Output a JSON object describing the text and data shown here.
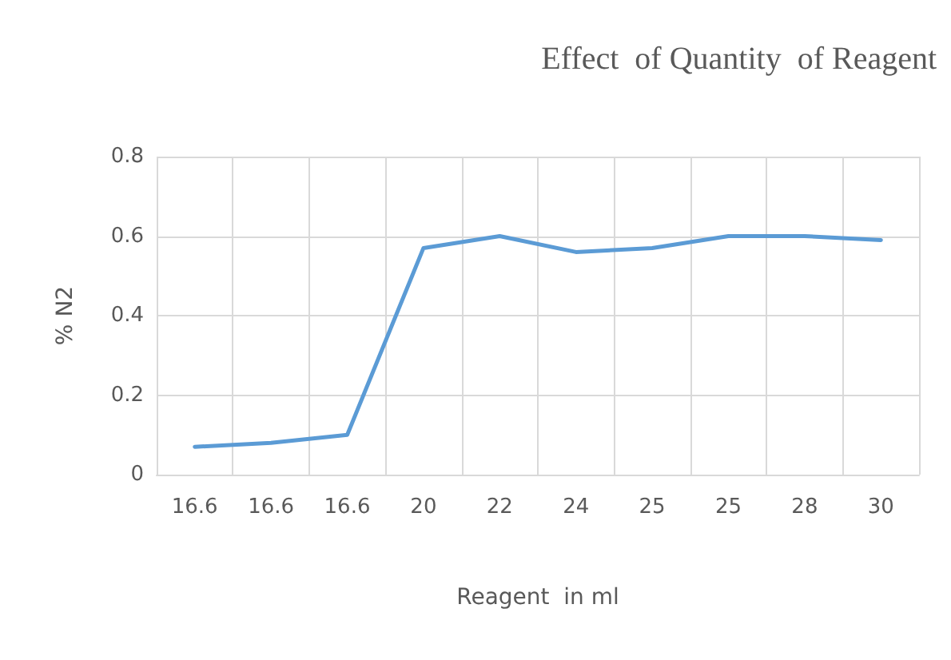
{
  "chart_data": {
    "type": "line",
    "title": "Effect  of Quantity  of Reagent",
    "xlabel": "Reagent  in ml",
    "ylabel": "% N2",
    "categories": [
      "16.6",
      "16.6",
      "16.6",
      "20",
      "22",
      "24",
      "25",
      "25",
      "28",
      "30"
    ],
    "series": [
      {
        "color": "#5b9bd5",
        "values": [
          0.07,
          0.08,
          0.1,
          0.57,
          0.6,
          0.56,
          0.57,
          0.6,
          0.6,
          0.59
        ]
      }
    ],
    "ylim": [
      0,
      0.8
    ],
    "yticks": [
      0,
      0.2,
      0.4,
      0.6,
      0.8
    ],
    "grid": true,
    "marker": "none",
    "line_style": "solid"
  }
}
